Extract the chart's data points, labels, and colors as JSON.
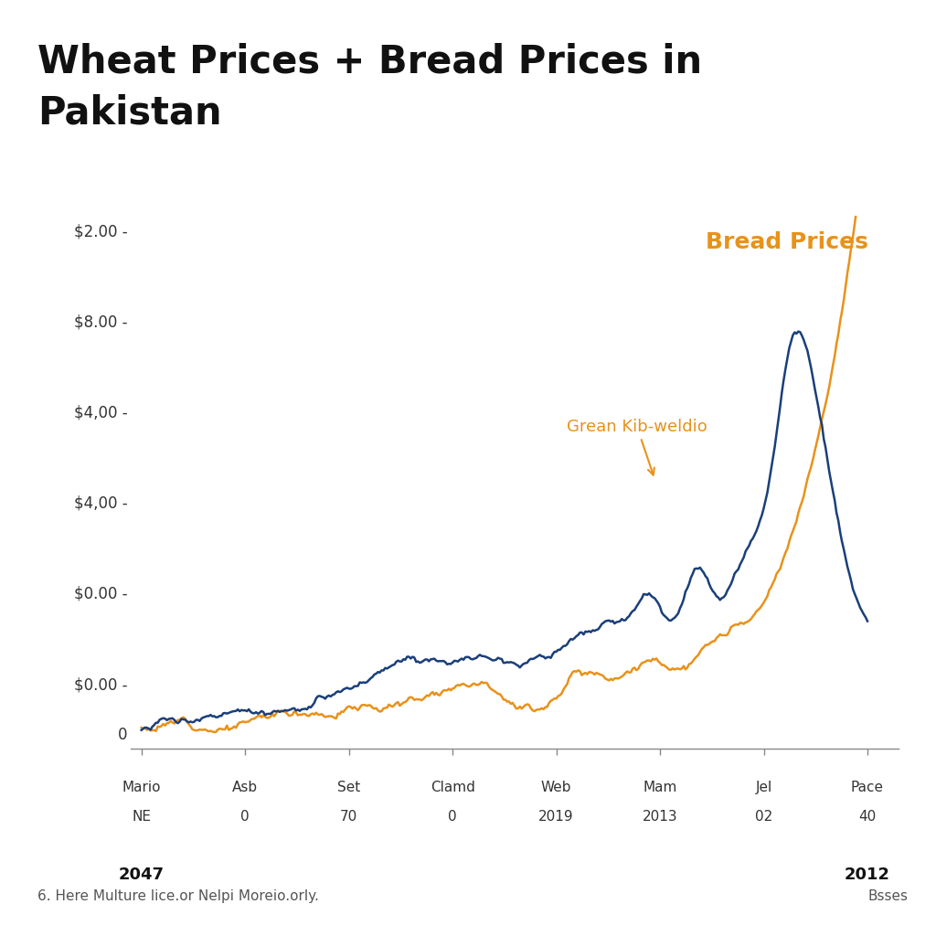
{
  "title_line1": "Wheat Prices + Bread Prices in",
  "title_line2": "Pakistan",
  "title_fontsize": 30,
  "title_fontweight": "bold",
  "background_color": "#ffffff",
  "orange_color": "#E8921A",
  "blue_color": "#1A3F7A",
  "x_tick_labels": [
    [
      "Mario",
      "NE"
    ],
    [
      "Asb",
      "0"
    ],
    [
      "Set",
      "70"
    ],
    [
      "Clamd",
      "0"
    ],
    [
      "Web",
      "2019"
    ],
    [
      "Mam",
      "2013"
    ],
    [
      "Jel",
      "02"
    ],
    [
      "Pace",
      "40"
    ]
  ],
  "year_left": "2047",
  "year_right": "2012",
  "y_tick_labels": [
    "$2.00 -",
    "$8.00 -",
    "$4,00 -",
    "$4,00 -",
    "$0.00 -",
    "$0.00 -"
  ],
  "bread_label": "Bread Prices",
  "annotation_text": "Grean Kib-weldio",
  "footer_left": "6. Here Multure lice.or Nelpi Moreio.orly.",
  "footer_right": "Bsses"
}
